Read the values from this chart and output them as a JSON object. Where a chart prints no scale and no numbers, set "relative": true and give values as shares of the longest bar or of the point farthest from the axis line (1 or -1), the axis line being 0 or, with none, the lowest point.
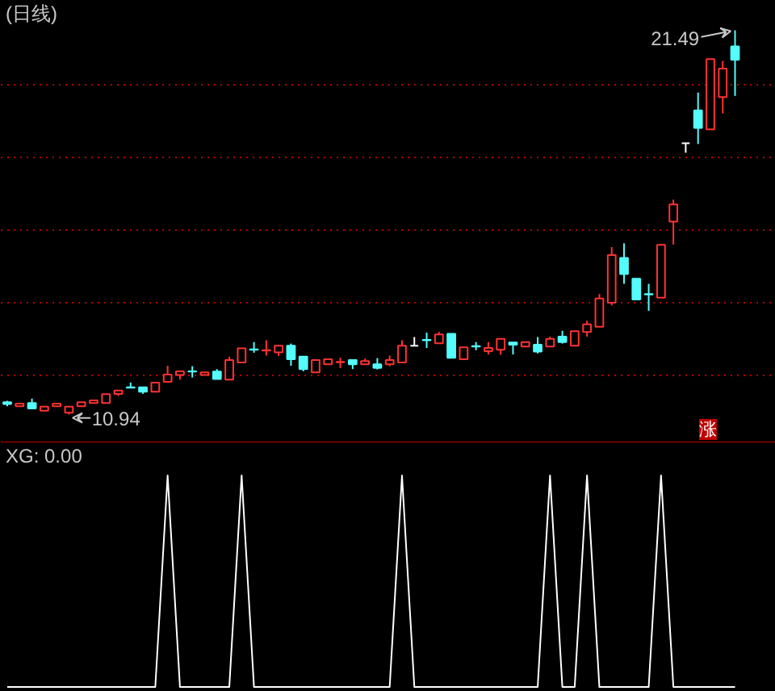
{
  "chart_data": [
    {
      "type": "candlestick",
      "title": "(日线)",
      "categories": [
        null,
        null,
        null,
        null,
        null,
        null,
        null,
        null,
        null,
        null,
        null,
        null,
        null,
        null,
        null,
        null,
        null,
        null,
        null,
        null,
        null,
        null,
        null,
        null,
        null,
        null,
        null,
        null,
        null,
        null,
        null,
        null,
        null,
        null,
        null,
        null,
        null,
        null,
        null,
        null,
        null,
        null,
        null,
        null,
        null,
        null,
        null,
        null,
        null,
        null,
        null,
        null,
        null,
        null,
        null,
        null,
        null,
        null,
        null,
        null
      ],
      "ohlc": [
        [
          11.28,
          11.32,
          11.17,
          11.23
        ],
        [
          11.17,
          11.24,
          11.17,
          11.24
        ],
        [
          11.26,
          11.38,
          11.11,
          11.11
        ],
        [
          11.05,
          11.16,
          11.05,
          11.16
        ],
        [
          11.17,
          11.24,
          11.17,
          11.24
        ],
        [
          10.99,
          11.16,
          10.94,
          11.16
        ],
        [
          11.17,
          11.28,
          11.17,
          11.28
        ],
        [
          11.26,
          11.33,
          11.26,
          11.33
        ],
        [
          11.26,
          11.5,
          11.26,
          11.5
        ],
        [
          11.51,
          11.6,
          11.45,
          11.6
        ],
        [
          11.69,
          11.82,
          11.68,
          11.68
        ],
        [
          11.69,
          11.69,
          11.51,
          11.57
        ],
        [
          11.57,
          11.82,
          11.57,
          11.82
        ],
        [
          11.84,
          12.28,
          11.84,
          12.04
        ],
        [
          12.03,
          12.13,
          11.9,
          12.13
        ],
        [
          12.13,
          12.27,
          11.96,
          12.12
        ],
        [
          12.03,
          12.1,
          12.03,
          12.1
        ],
        [
          12.12,
          12.19,
          11.92,
          11.92
        ],
        [
          11.9,
          12.53,
          11.9,
          12.44
        ],
        [
          12.37,
          12.76,
          12.37,
          12.76
        ],
        [
          12.73,
          12.93,
          12.64,
          12.72
        ],
        [
          12.7,
          12.98,
          12.56,
          12.71
        ],
        [
          12.65,
          12.83,
          12.55,
          12.83
        ],
        [
          12.83,
          12.89,
          12.28,
          12.46
        ],
        [
          12.53,
          12.53,
          12.13,
          12.19
        ],
        [
          12.1,
          12.44,
          12.1,
          12.44
        ],
        [
          12.32,
          12.46,
          12.32,
          12.46
        ],
        [
          12.38,
          12.5,
          12.22,
          12.39
        ],
        [
          12.44,
          12.44,
          12.19,
          12.32
        ],
        [
          12.32,
          12.48,
          12.32,
          12.41
        ],
        [
          12.32,
          12.49,
          12.18,
          12.22
        ],
        [
          12.32,
          12.56,
          12.27,
          12.44
        ],
        [
          12.37,
          12.98,
          12.37,
          12.83
        ],
        [
          12.83,
          13.07,
          12.83,
          12.83
        ],
        [
          12.99,
          13.19,
          12.77,
          12.98
        ],
        [
          12.9,
          13.21,
          12.9,
          13.14
        ],
        [
          13.16,
          13.16,
          12.5,
          12.5
        ],
        [
          12.46,
          12.79,
          12.46,
          12.79
        ],
        [
          12.82,
          12.93,
          12.71,
          12.81
        ],
        [
          12.68,
          12.93,
          12.59,
          12.77
        ],
        [
          12.72,
          13.02,
          12.58,
          13.02
        ],
        [
          12.92,
          12.92,
          12.59,
          12.86
        ],
        [
          12.81,
          12.93,
          12.81,
          12.93
        ],
        [
          12.86,
          13.07,
          12.62,
          12.67
        ],
        [
          12.81,
          13.08,
          12.81,
          13.02
        ],
        [
          13.08,
          13.24,
          12.89,
          12.93
        ],
        [
          12.83,
          13.23,
          12.83,
          13.23
        ],
        [
          13.21,
          13.52,
          13.08,
          13.42
        ],
        [
          13.35,
          14.25,
          13.35,
          14.13
        ],
        [
          14.01,
          15.54,
          13.94,
          15.32
        ],
        [
          15.24,
          15.64,
          14.53,
          14.8
        ],
        [
          14.67,
          14.67,
          14.1,
          14.1
        ],
        [
          14.25,
          14.53,
          13.79,
          14.24
        ],
        [
          14.15,
          15.6,
          14.15,
          15.6
        ],
        [
          16.24,
          16.84,
          15.61,
          16.71
        ],
        [
          18.39,
          18.39,
          18.13,
          18.39
        ],
        [
          19.29,
          19.78,
          18.37,
          18.81
        ],
        [
          18.77,
          20.7,
          18.77,
          20.7
        ],
        [
          19.66,
          20.65,
          19.21,
          20.44
        ],
        [
          21.05,
          21.49,
          19.69,
          20.68
        ]
      ],
      "colors": [
        "#54fcfc",
        "#ff3232",
        "#54fcfc",
        "#ff3232",
        "#ff3232",
        "#ff3232",
        "#ff3232",
        "#ff3232",
        "#ff3232",
        "#ff3232",
        "#54fcfc",
        "#54fcfc",
        "#ff3232",
        "#ff3232",
        "#ff3232",
        "#54fcfc",
        "#ff3232",
        "#54fcfc",
        "#ff3232",
        "#ff3232",
        "#54fcfc",
        "#ff3232",
        "#ff3232",
        "#54fcfc",
        "#54fcfc",
        "#ff3232",
        "#ff3232",
        "#ff3232",
        "#54fcfc",
        "#ff3232",
        "#54fcfc",
        "#ff3232",
        "#ff3232",
        "#ffffff",
        "#54fcfc",
        "#ff3232",
        "#54fcfc",
        "#ff3232",
        "#54fcfc",
        "#ff3232",
        "#ff3232",
        "#54fcfc",
        "#ff3232",
        "#54fcfc",
        "#ff3232",
        "#54fcfc",
        "#ff3232",
        "#ff3232",
        "#ff3232",
        "#ff3232",
        "#54fcfc",
        "#54fcfc",
        "#54fcfc",
        "#ff3232",
        "#ff3232",
        "#ffffff",
        "#54fcfc",
        "#ff3232",
        "#ff3232",
        "#54fcfc"
      ],
      "ylim": [
        10.2,
        22.3
      ],
      "yticks": [
        {
          "value": 12,
          "label": null
        },
        {
          "value": 14,
          "label": null
        },
        {
          "value": 16,
          "label": null
        },
        {
          "value": 18,
          "label": null
        },
        {
          "value": 20,
          "label": null
        }
      ],
      "grid": "y",
      "tick_labels": false,
      "annotations": [
        "21.49",
        "10.94",
        "涨"
      ]
    },
    {
      "type": "line",
      "title": "XG: 0.00",
      "categories": [
        null,
        null,
        null,
        null,
        null,
        null,
        null,
        null,
        null,
        null,
        null,
        null,
        null,
        null,
        null,
        null,
        null,
        null,
        null,
        null,
        null,
        null,
        null,
        null,
        null,
        null,
        null,
        null,
        null,
        null,
        null,
        null,
        null,
        null,
        null,
        null,
        null,
        null,
        null,
        null,
        null,
        null,
        null,
        null,
        null,
        null,
        null,
        null,
        null,
        null,
        null,
        null,
        null,
        null,
        null,
        null,
        null,
        null,
        null,
        null
      ],
      "values": [
        0,
        0,
        0,
        0,
        0,
        0,
        0,
        0,
        0,
        0,
        0,
        0,
        0,
        1,
        0,
        0,
        0,
        0,
        0,
        1,
        0,
        0,
        0,
        0,
        0,
        0,
        0,
        0,
        0,
        0,
        0,
        0,
        1,
        0,
        0,
        0,
        0,
        0,
        0,
        0,
        0,
        0,
        0,
        0,
        1,
        0,
        0,
        1,
        0,
        0,
        0,
        0,
        0,
        1,
        0,
        0,
        0,
        0,
        0,
        0
      ],
      "color": "#ffffff",
      "relative": true,
      "tick_labels": false
    }
  ]
}
